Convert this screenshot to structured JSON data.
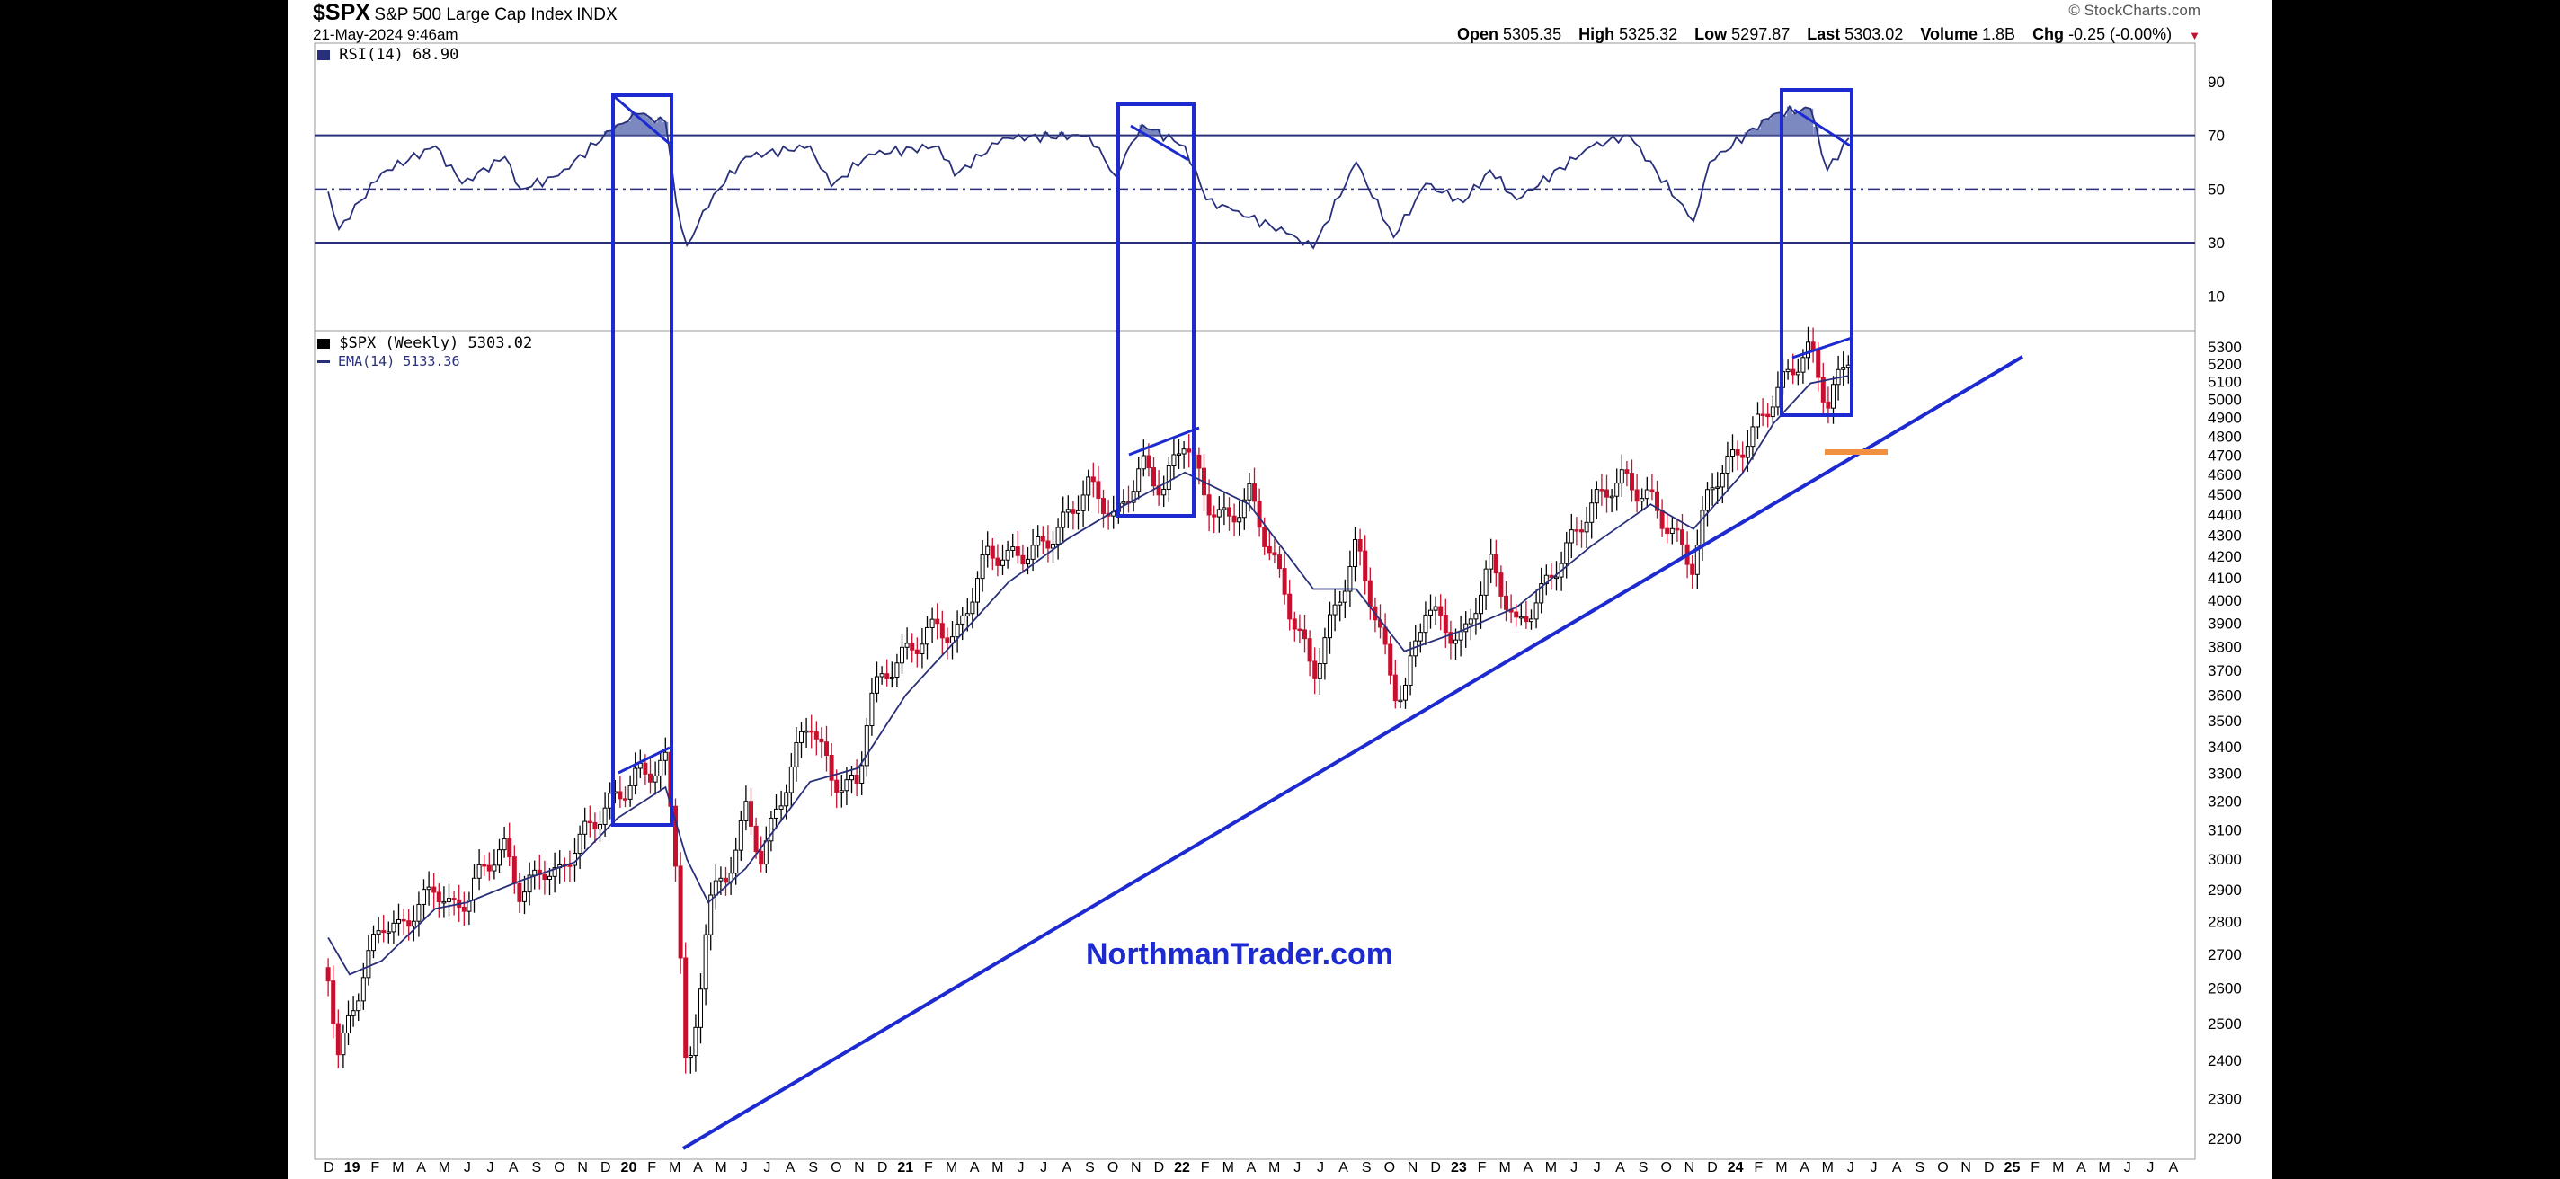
{
  "header": {
    "symbol": "$SPX",
    "name": "S&P 500 Large Cap Index",
    "exchange": "INDX",
    "timestamp": "21-May-2024 9:46am",
    "brand": "© StockCharts.com",
    "quote": [
      {
        "label": "Open",
        "value": "5305.35"
      },
      {
        "label": "High",
        "value": "5325.32"
      },
      {
        "label": "Low",
        "value": "5297.87"
      },
      {
        "label": "Last",
        "value": "5303.02"
      },
      {
        "label": "Volume",
        "value": "1.8B"
      },
      {
        "label": "Chg",
        "value": "-0.25 (-0.00%)"
      }
    ]
  },
  "rsi_panel": {
    "legend": "RSI(14) 68.90",
    "ticks": [
      "90",
      "70",
      "50",
      "30",
      "10"
    ]
  },
  "price_panel": {
    "legend_main": "$SPX (Weekly) 5303.02",
    "legend_ema": "EMA(14) 5133.36",
    "ticks": [
      "5300",
      "5200",
      "5100",
      "5000",
      "4900",
      "4800",
      "4700",
      "4600",
      "4500",
      "4400",
      "4300",
      "4200",
      "4100",
      "4000",
      "3900",
      "3800",
      "3700",
      "3600",
      "3500",
      "3400",
      "3300",
      "3200",
      "3100",
      "3000",
      "2900",
      "2800",
      "2700",
      "2600",
      "2500",
      "2400",
      "2300",
      "2200"
    ],
    "watermark": "NorthmanTrader.com"
  },
  "x_axis": {
    "labels": [
      "D",
      "19",
      "F",
      "M",
      "A",
      "M",
      "J",
      "J",
      "A",
      "S",
      "O",
      "N",
      "D",
      "20",
      "F",
      "M",
      "A",
      "M",
      "J",
      "J",
      "A",
      "S",
      "O",
      "N",
      "D",
      "21",
      "F",
      "M",
      "A",
      "M",
      "J",
      "J",
      "A",
      "S",
      "O",
      "N",
      "D",
      "22",
      "F",
      "M",
      "A",
      "M",
      "J",
      "J",
      "A",
      "S",
      "O",
      "N",
      "D",
      "23",
      "F",
      "M",
      "A",
      "M",
      "J",
      "J",
      "A",
      "S",
      "O",
      "N",
      "D",
      "24",
      "F",
      "M",
      "A",
      "M",
      "J",
      "J",
      "A",
      "S",
      "O",
      "N",
      "D",
      "25",
      "F",
      "M",
      "A",
      "M",
      "J",
      "J",
      "A"
    ]
  },
  "chart_data": {
    "type": "line",
    "title": "$SPX S&P 500 Large Cap Index INDX",
    "x_range": [
      "2018-12",
      "2025-08"
    ],
    "series": [
      {
        "name": "$SPX (Weekly)",
        "points": [
          [
            "2018-12-07",
            2660
          ],
          [
            "2018-12-21",
            2420
          ],
          [
            "2019-01-04",
            2530
          ],
          [
            "2019-01-25",
            2660
          ],
          [
            "2019-02-15",
            2780
          ],
          [
            "2019-03-08",
            2750
          ],
          [
            "2019-03-29",
            2830
          ],
          [
            "2019-04-26",
            2940
          ],
          [
            "2019-05-17",
            2850
          ],
          [
            "2019-06-07",
            2870
          ],
          [
            "2019-06-28",
            2950
          ],
          [
            "2019-07-26",
            3020
          ],
          [
            "2019-08-16",
            2890
          ],
          [
            "2019-09-13",
            3000
          ],
          [
            "2019-10-04",
            2950
          ],
          [
            "2019-10-25",
            3030
          ],
          [
            "2019-11-22",
            3110
          ],
          [
            "2019-12-20",
            3220
          ],
          [
            "2020-01-17",
            3330
          ],
          [
            "2020-02-07",
            3330
          ],
          [
            "2020-02-21",
            3340
          ],
          [
            "2020-03-06",
            2970
          ],
          [
            "2020-03-20",
            2300
          ],
          [
            "2020-04-03",
            2490
          ],
          [
            "2020-04-17",
            2870
          ],
          [
            "2020-05-08",
            2930
          ],
          [
            "2020-06-05",
            3190
          ],
          [
            "2020-06-26",
            3010
          ],
          [
            "2020-07-24",
            3210
          ],
          [
            "2020-08-28",
            3500
          ],
          [
            "2020-09-25",
            3300
          ],
          [
            "2020-10-30",
            3270
          ],
          [
            "2020-11-13",
            3580
          ],
          [
            "2020-12-31",
            3750
          ],
          [
            "2021-02-12",
            3930
          ],
          [
            "2021-03-05",
            3840
          ],
          [
            "2021-04-16",
            4180
          ],
          [
            "2021-05-14",
            4170
          ],
          [
            "2021-06-25",
            4280
          ],
          [
            "2021-07-30",
            4390
          ],
          [
            "2021-08-27",
            4510
          ],
          [
            "2021-10-01",
            4360
          ],
          [
            "2021-11-05",
            4690
          ],
          [
            "2021-12-03",
            4540
          ],
          [
            "2021-12-31",
            4770
          ],
          [
            "2022-01-28",
            4430
          ],
          [
            "2022-02-25",
            4380
          ],
          [
            "2022-03-25",
            4540
          ],
          [
            "2022-05-20",
            3900
          ],
          [
            "2022-06-17",
            3670
          ],
          [
            "2022-08-12",
            4280
          ],
          [
            "2022-09-30",
            3590
          ],
          [
            "2022-10-14",
            3580
          ],
          [
            "2022-11-11",
            3990
          ],
          [
            "2022-12-30",
            3840
          ],
          [
            "2023-02-03",
            4140
          ],
          [
            "2023-03-10",
            3860
          ],
          [
            "2023-04-28",
            4170
          ],
          [
            "2023-06-16",
            4410
          ],
          [
            "2023-07-28",
            4580
          ],
          [
            "2023-09-01",
            4510
          ],
          [
            "2023-10-27",
            4120
          ],
          [
            "2023-11-17",
            4510
          ],
          [
            "2023-12-29",
            4770
          ],
          [
            "2024-02-09",
            5020
          ],
          [
            "2024-03-28",
            5250
          ],
          [
            "2024-04-19",
            4970
          ],
          [
            "2024-05-17",
            5300
          ]
        ]
      },
      {
        "name": "EMA(14)",
        "points": [
          [
            "2018-12-07",
            2750
          ],
          [
            "2019-01-04",
            2640
          ],
          [
            "2019-02-15",
            2680
          ],
          [
            "2019-04-26",
            2840
          ],
          [
            "2019-06-07",
            2860
          ],
          [
            "2019-08-16",
            2930
          ],
          [
            "2019-10-25",
            2990
          ],
          [
            "2019-12-20",
            3140
          ],
          [
            "2020-02-21",
            3250
          ],
          [
            "2020-03-20",
            3000
          ],
          [
            "2020-04-17",
            2860
          ],
          [
            "2020-06-05",
            2970
          ],
          [
            "2020-08-28",
            3270
          ],
          [
            "2020-10-30",
            3320
          ],
          [
            "2020-12-31",
            3600
          ],
          [
            "2021-03-05",
            3820
          ],
          [
            "2021-05-14",
            4080
          ],
          [
            "2021-07-30",
            4280
          ],
          [
            "2021-10-01",
            4420
          ],
          [
            "2021-12-31",
            4610
          ],
          [
            "2022-03-25",
            4450
          ],
          [
            "2022-06-17",
            4050
          ],
          [
            "2022-08-12",
            4050
          ],
          [
            "2022-10-14",
            3780
          ],
          [
            "2022-12-30",
            3870
          ],
          [
            "2023-03-10",
            3970
          ],
          [
            "2023-06-16",
            4250
          ],
          [
            "2023-09-01",
            4450
          ],
          [
            "2023-10-27",
            4330
          ],
          [
            "2023-12-29",
            4600
          ],
          [
            "2024-02-09",
            4870
          ],
          [
            "2024-03-28",
            5090
          ],
          [
            "2024-05-17",
            5133
          ]
        ]
      },
      {
        "name": "RSI(14)",
        "points": [
          [
            "2018-12-07",
            49
          ],
          [
            "2018-12-21",
            35
          ],
          [
            "2019-02-15",
            56
          ],
          [
            "2019-04-26",
            66
          ],
          [
            "2019-05-31",
            52
          ],
          [
            "2019-07-26",
            62
          ],
          [
            "2019-08-16",
            50
          ],
          [
            "2019-10-04",
            55
          ],
          [
            "2019-12-20",
            74
          ],
          [
            "2020-01-17",
            78
          ],
          [
            "2020-02-21",
            75
          ],
          [
            "2020-03-06",
            45
          ],
          [
            "2020-03-20",
            29
          ],
          [
            "2020-04-24",
            48
          ],
          [
            "2020-06-05",
            62
          ],
          [
            "2020-08-28",
            66
          ],
          [
            "2020-09-25",
            51
          ],
          [
            "2020-11-13",
            63
          ],
          [
            "2021-02-12",
            66
          ],
          [
            "2021-03-05",
            55
          ],
          [
            "2021-05-07",
            69
          ],
          [
            "2021-08-27",
            70
          ],
          [
            "2021-10-01",
            55
          ],
          [
            "2021-11-05",
            74
          ],
          [
            "2021-12-31",
            66
          ],
          [
            "2022-01-28",
            46
          ],
          [
            "2022-03-04",
            42
          ],
          [
            "2022-05-20",
            33
          ],
          [
            "2022-06-17",
            28
          ],
          [
            "2022-08-12",
            60
          ],
          [
            "2022-09-30",
            32
          ],
          [
            "2022-11-11",
            52
          ],
          [
            "2022-12-30",
            45
          ],
          [
            "2023-02-03",
            57
          ],
          [
            "2023-03-10",
            46
          ],
          [
            "2023-06-16",
            66
          ],
          [
            "2023-08-04",
            70
          ],
          [
            "2023-10-27",
            38
          ],
          [
            "2023-11-17",
            60
          ],
          [
            "2024-02-09",
            78
          ],
          [
            "2024-03-28",
            80
          ],
          [
            "2024-04-19",
            57
          ],
          [
            "2024-05-17",
            68.9
          ]
        ]
      }
    ],
    "rsi_ylim": [
      0,
      100
    ],
    "rsi_levels": [
      70,
      50,
      30
    ],
    "price_ylim": [
      2150,
      5400
    ],
    "annotations": [
      "NorthmanTrader.com"
    ],
    "grid": false,
    "legend": "top-left"
  }
}
